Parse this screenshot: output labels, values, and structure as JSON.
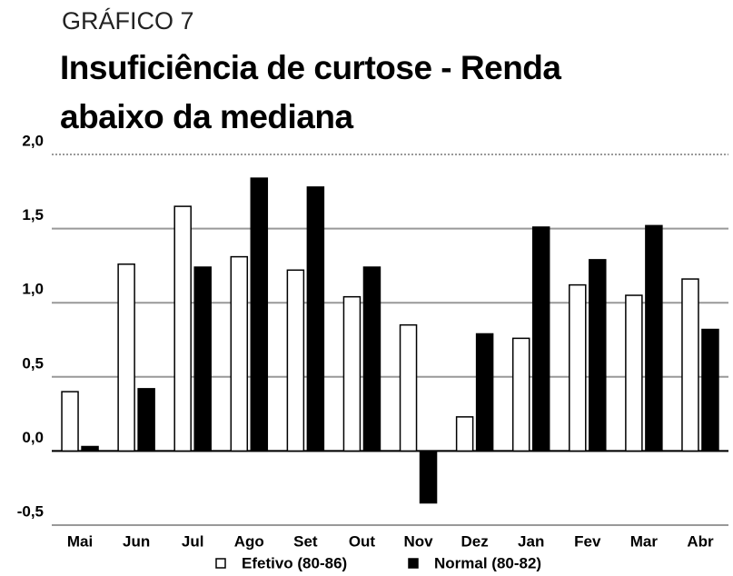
{
  "chart_data": {
    "type": "bar",
    "supertitle": "GRÁFICO 7",
    "title": "Insuficiência de curtose - Renda abaixo da mediana",
    "categories": [
      "Mai",
      "Jun",
      "Jul",
      "Ago",
      "Set",
      "Out",
      "Nov",
      "Dez",
      "Jan",
      "Fev",
      "Mar",
      "Abr"
    ],
    "series": [
      {
        "name": "Efetivo (80-86)",
        "color": "#ffffff",
        "values": [
          0.4,
          1.26,
          1.65,
          1.31,
          1.22,
          1.04,
          0.85,
          0.23,
          0.76,
          1.12,
          1.05,
          1.16
        ]
      },
      {
        "name": "Normal (80-82)",
        "color": "#000000",
        "values": [
          0.03,
          0.42,
          1.24,
          1.84,
          1.78,
          1.24,
          -0.35,
          0.79,
          1.51,
          1.29,
          1.52,
          0.82
        ]
      }
    ],
    "ylim": [
      -0.5,
      2.0
    ],
    "yticks": [
      {
        "value": -0.5,
        "label": "-0,5"
      },
      {
        "value": 0,
        "label": "0,0"
      },
      {
        "value": 0.5,
        "label": "0,5"
      },
      {
        "value": 1.0,
        "label": "1,0"
      },
      {
        "value": 1.5,
        "label": "1,5"
      },
      {
        "value": 2.0,
        "label": "2,0"
      }
    ],
    "grid": true,
    "legend": "bottom"
  }
}
